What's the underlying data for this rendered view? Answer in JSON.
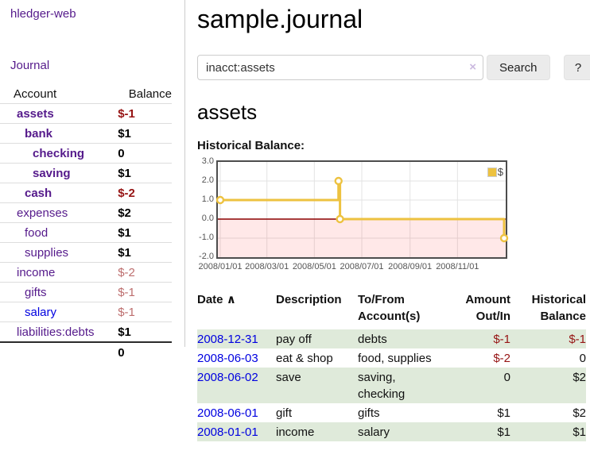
{
  "app": {
    "title": "hledger-web",
    "nav_journal": "Journal"
  },
  "colors": {
    "link_purple": "#551a8b",
    "link_blue": "#0000e0",
    "negative_strong": "#961414",
    "negative_weak": "#bd6e6e",
    "row_shade_green": "#dfeada",
    "chart_gold": "#edc240"
  },
  "sidebar": {
    "headers": {
      "account": "Account",
      "balance": "Balance"
    },
    "accounts": [
      {
        "name": "assets",
        "level": 1,
        "bold": true,
        "link": "purple",
        "balance": "$-1",
        "balance_class": "neg-strong"
      },
      {
        "name": "bank",
        "level": 2,
        "bold": true,
        "link": "purple",
        "balance": "$1",
        "balance_class": "pos"
      },
      {
        "name": "checking",
        "level": 3,
        "bold": true,
        "link": "purple",
        "balance": "0",
        "balance_class": "pos"
      },
      {
        "name": "saving",
        "level": 3,
        "bold": true,
        "link": "purple",
        "balance": "$1",
        "balance_class": "pos"
      },
      {
        "name": "cash",
        "level": 2,
        "bold": true,
        "link": "purple",
        "balance": "$-2",
        "balance_class": "neg-strong"
      },
      {
        "name": "expenses",
        "level": 1,
        "bold": false,
        "link": "purple",
        "balance": "$2",
        "balance_class": "pos"
      },
      {
        "name": "food",
        "level": 2,
        "bold": false,
        "link": "purple",
        "balance": "$1",
        "balance_class": "pos"
      },
      {
        "name": "supplies",
        "level": 2,
        "bold": false,
        "link": "purple",
        "balance": "$1",
        "balance_class": "pos"
      },
      {
        "name": "income",
        "level": 1,
        "bold": false,
        "link": "purple",
        "balance": "$-2",
        "balance_class": "neg-weak"
      },
      {
        "name": "gifts",
        "level": 2,
        "bold": false,
        "link": "purple",
        "balance": "$-1",
        "balance_class": "neg-weak"
      },
      {
        "name": "salary",
        "level": 2,
        "bold": false,
        "link": "blue",
        "balance": "$-1",
        "balance_class": "neg-weak"
      },
      {
        "name": "liabilities:debts",
        "level": 1,
        "bold": false,
        "link": "purple",
        "balance": "$1",
        "balance_class": "pos"
      }
    ],
    "total": "0"
  },
  "main": {
    "title": "sample.journal",
    "search": {
      "value": "inacct:assets",
      "clear_icon": "×",
      "button": "Search",
      "help": "?"
    },
    "account_heading": "assets",
    "chart_label": "Historical Balance:"
  },
  "chart_data": {
    "type": "line",
    "title": "Historical Balance",
    "step": true,
    "series": [
      {
        "name": "$",
        "color": "#edc240",
        "points": [
          [
            "2008-01-01",
            1
          ],
          [
            "2008-06-01",
            2
          ],
          [
            "2008-06-03",
            0
          ],
          [
            "2008-12-31",
            -1
          ]
        ]
      }
    ],
    "ylim": [
      -2.0,
      3.0
    ],
    "yticks": [
      3.0,
      2.0,
      1.0,
      0.0,
      -1.0,
      -2.0
    ],
    "ytick_labels": [
      "3.0",
      "2.0",
      "1.0",
      "0.0",
      "-1.0",
      "-2.0"
    ],
    "xticks": [
      "2008/01/01",
      "2008/03/01",
      "2008/05/01",
      "2008/07/01",
      "2008/09/01",
      "2008/11/01"
    ],
    "legend": "$",
    "legend_position": "top-right",
    "grid": true,
    "gridline_color": "#e3e3e3",
    "negative_fill": "rgba(255,0,0,0.09)",
    "zero_line_color": "#8b0000",
    "border_color": "#4d4d4d"
  },
  "register": {
    "headers": {
      "date": "Date",
      "sort_arrow": "∧",
      "description": "Description",
      "tofrom": "To/From Account(s)",
      "amount": "Amount Out/In",
      "balance": "Historical Balance"
    },
    "rows": [
      {
        "date": "2008-12-31",
        "description": "pay off",
        "accounts": "debts",
        "amount": "$-1",
        "amount_class": "neg",
        "balance": "$-1",
        "balance_class": "neg",
        "shaded": true
      },
      {
        "date": "2008-06-03",
        "description": "eat & shop",
        "accounts": "food, supplies",
        "amount": "$-2",
        "amount_class": "neg",
        "balance": "0",
        "balance_class": "",
        "shaded": false
      },
      {
        "date": "2008-06-02",
        "description": "save",
        "accounts": "saving, checking",
        "amount": "0",
        "amount_class": "",
        "balance": "$2",
        "balance_class": "",
        "shaded": true
      },
      {
        "date": "2008-06-01",
        "description": "gift",
        "accounts": "gifts",
        "amount": "$1",
        "amount_class": "",
        "balance": "$2",
        "balance_class": "",
        "shaded": false
      },
      {
        "date": "2008-01-01",
        "description": "income",
        "accounts": "salary",
        "amount": "$1",
        "amount_class": "",
        "balance": "$1",
        "balance_class": "",
        "shaded": true
      }
    ]
  }
}
